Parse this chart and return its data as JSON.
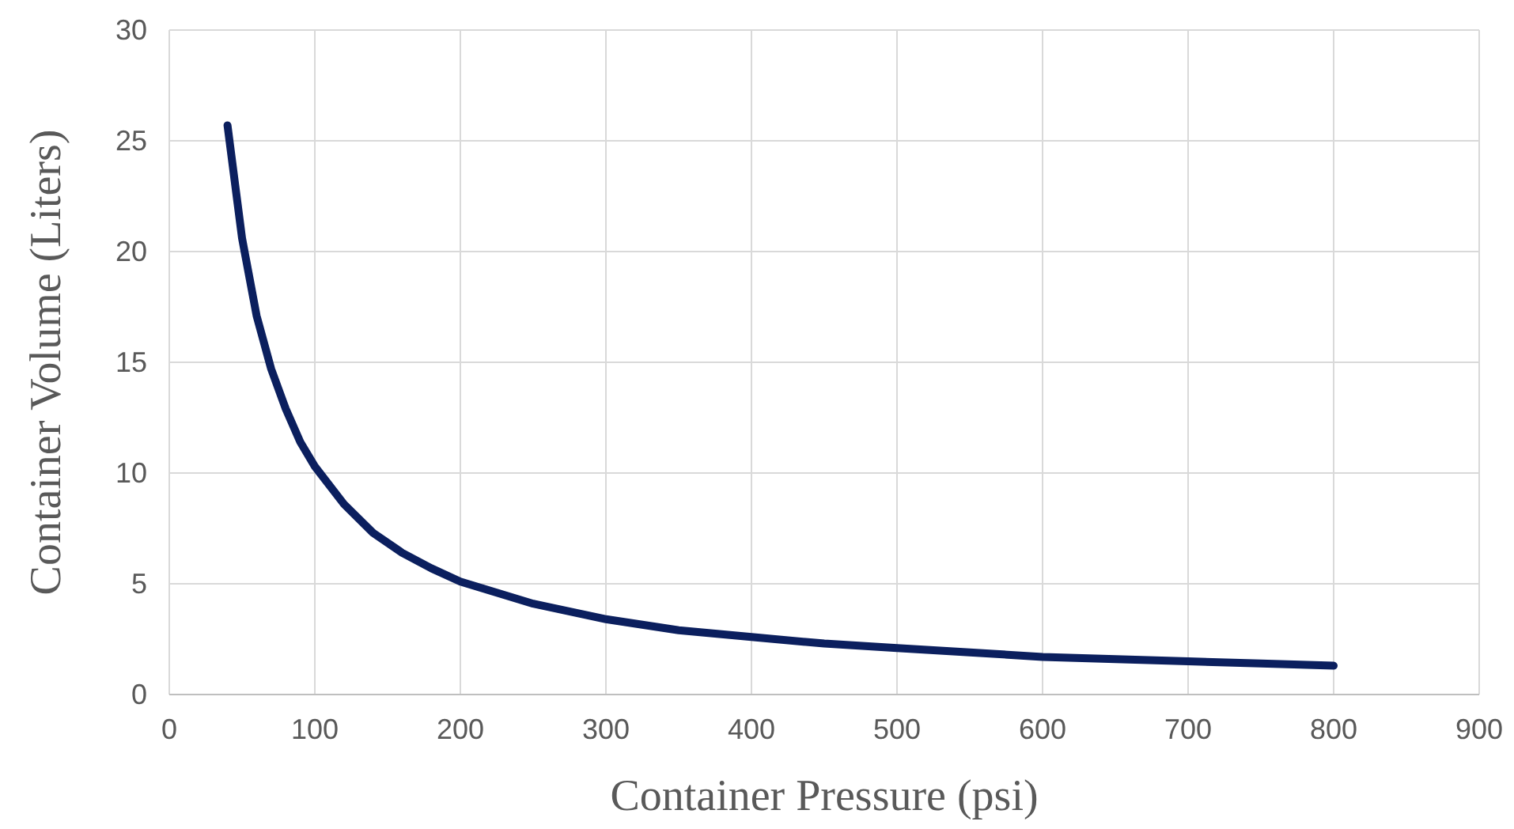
{
  "chart_data": {
    "type": "line",
    "xlabel": "Container Pressure (psi)",
    "ylabel": "Container Volume (Liters)",
    "x": [
      40,
      50,
      60,
      70,
      80,
      90,
      100,
      120,
      140,
      160,
      180,
      200,
      250,
      300,
      350,
      400,
      450,
      500,
      550,
      600,
      650,
      700,
      750,
      800
    ],
    "series": [
      {
        "color": "#0b1f5e",
        "values": [
          25.7,
          20.6,
          17.1,
          14.7,
          12.9,
          11.4,
          10.3,
          8.6,
          7.3,
          6.4,
          5.7,
          5.1,
          4.1,
          3.4,
          2.9,
          2.6,
          2.3,
          2.1,
          1.9,
          1.7,
          1.6,
          1.5,
          1.4,
          1.3
        ]
      }
    ],
    "xlim": [
      0,
      900
    ],
    "xticks": [
      0,
      100,
      200,
      300,
      400,
      500,
      600,
      700,
      800,
      900
    ],
    "ylim": [
      0,
      30
    ],
    "yticks": [
      0,
      5,
      10,
      15,
      20,
      25,
      30
    ],
    "grid": true,
    "marker": "none",
    "line_style": "solid"
  }
}
